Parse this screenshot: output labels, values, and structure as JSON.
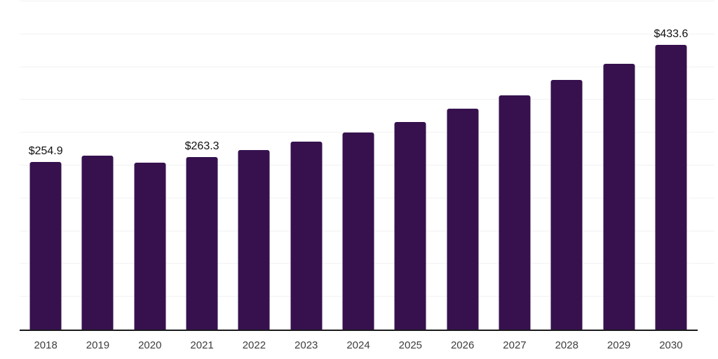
{
  "chart_data": {
    "type": "bar",
    "title": "",
    "xlabel": "",
    "ylabel": "",
    "categories": [
      "2018",
      "2019",
      "2020",
      "2021",
      "2022",
      "2023",
      "2024",
      "2025",
      "2026",
      "2027",
      "2028",
      "2029",
      "2030"
    ],
    "values": [
      254.9,
      265.4,
      253.8,
      263.3,
      273.4,
      286.8,
      300.3,
      316.6,
      336.5,
      356.7,
      380.1,
      405.0,
      433.6
    ],
    "value_labels": {
      "0": "$254.9",
      "3": "$263.3",
      "12": "$433.6"
    },
    "ylim": [
      0,
      500
    ],
    "gridline_step": 50,
    "grid": "horizontal-only",
    "y_tick_labels_visible": false,
    "legend_position": "none",
    "colors": {
      "bar": "#36114E",
      "gridline": "#f2f2f2",
      "axis_line": "#1a1a1a",
      "value_label": "#111111",
      "tick_label": "#3d3d3d",
      "background": "#ffffff"
    }
  }
}
